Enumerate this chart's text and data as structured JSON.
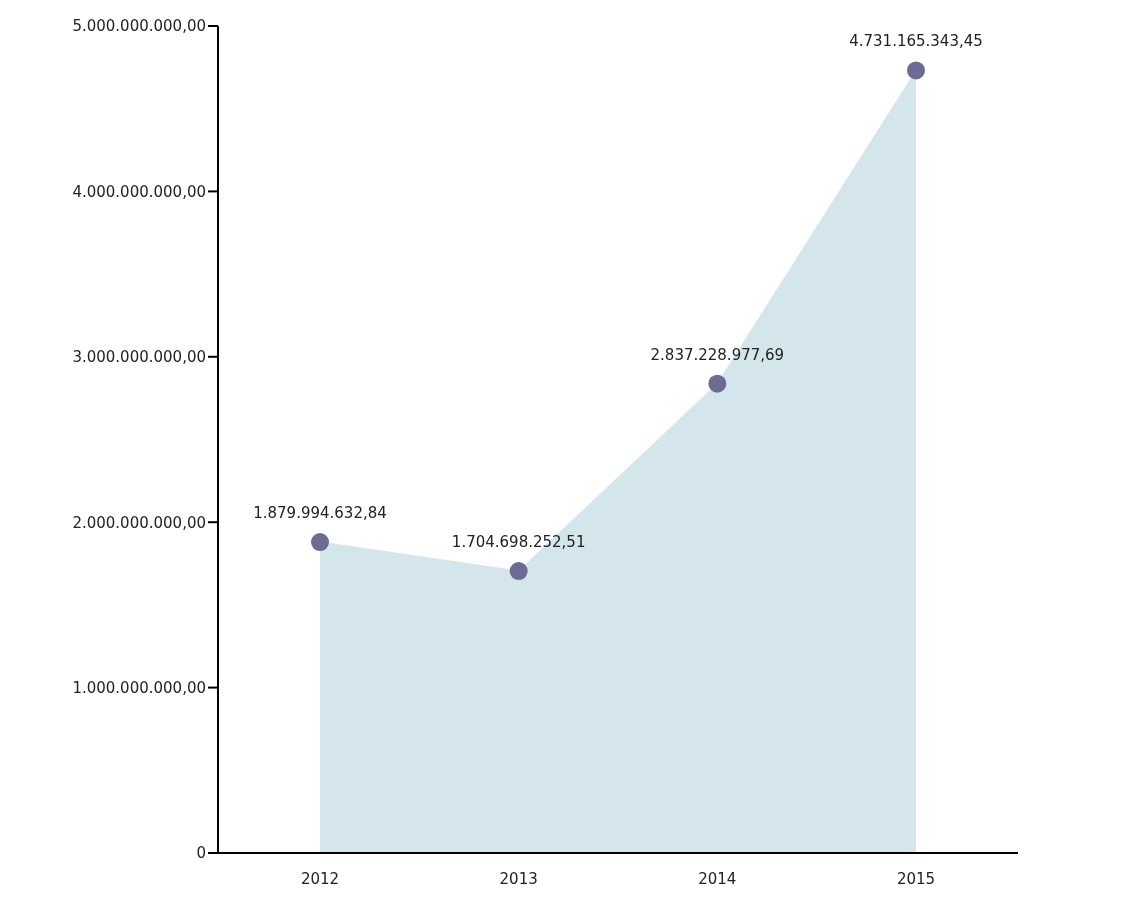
{
  "chart_data": {
    "type": "area",
    "categories": [
      "2012",
      "2013",
      "2014",
      "2015"
    ],
    "series": [
      {
        "color": "#d4e5eb",
        "values": [
          1879994632.84,
          1704698252.51,
          2837228977.69,
          4731165343.45
        ]
      },
      {
        "type": "scatter",
        "color": "#6b6b94",
        "marker": "circle",
        "values": [
          1879994632.84,
          1704698252.51,
          2837228977.69,
          4731165343.45
        ],
        "value_labels": [
          "1.879.994.632,84",
          "1.704.698.252,51",
          "2.837.228.977,69",
          "4.731.165.343,45"
        ]
      }
    ],
    "ylim": [
      0,
      5000000000
    ],
    "yticks": [
      0,
      {
        "value": 1000000000,
        "label": "1.000.000.000,00"
      },
      {
        "value": 2000000000,
        "label": "2.000.000.000,00"
      },
      {
        "value": 3000000000,
        "label": "3.000.000.000,00"
      },
      {
        "value": 4000000000,
        "label": "4.000.000.000,00"
      },
      {
        "value": 5000000000,
        "label": "5.000.000.000,00"
      }
    ],
    "legend": false
  }
}
